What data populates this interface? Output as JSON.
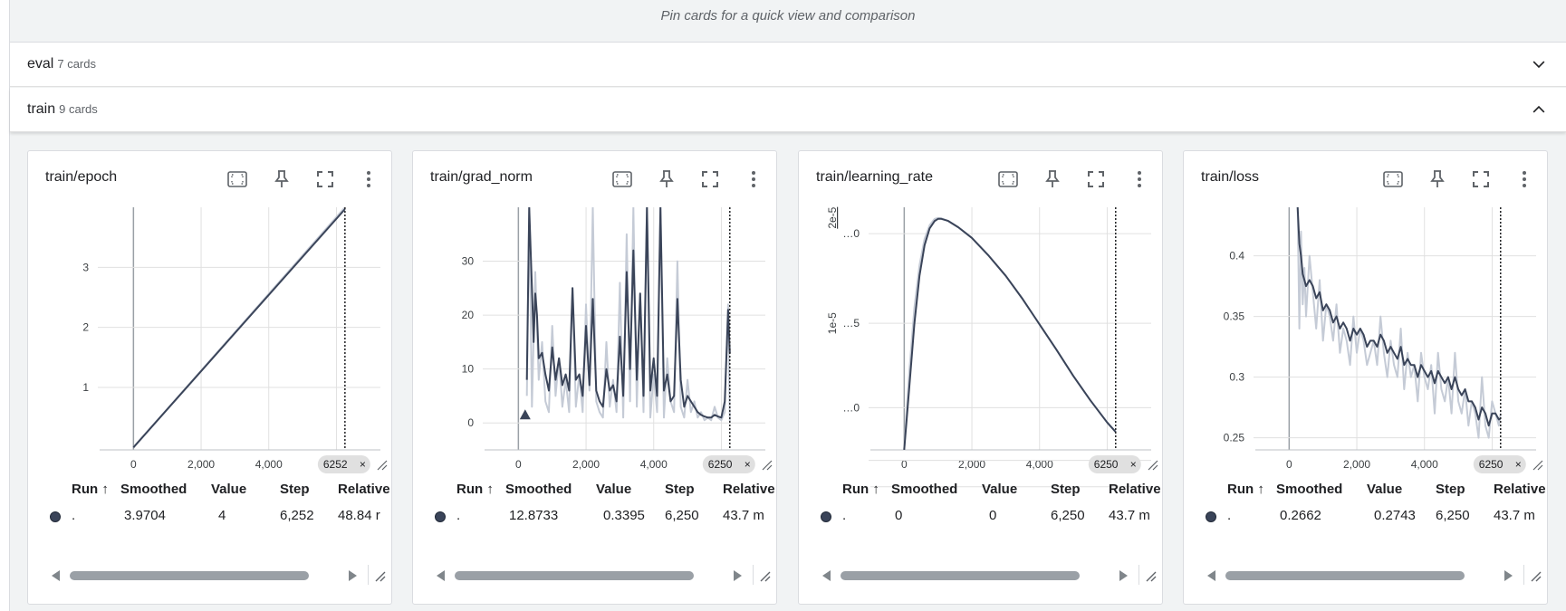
{
  "pinned_hint": "Pin cards for a quick view and comparison",
  "groups": [
    {
      "name": "eval",
      "count": "7 cards",
      "expanded": false
    },
    {
      "name": "train",
      "count": "9 cards",
      "expanded": true
    }
  ],
  "table_headers": {
    "run": "Run ↑",
    "smoothed": "Smoothed",
    "value": "Value",
    "step": "Step",
    "relative": "Relative"
  },
  "colors": {
    "line": "#3a4459",
    "raw": "#c5cbd6",
    "grid": "#e0e0e0",
    "axis": "#9aa0a6"
  },
  "icons": [
    "fit-domain-icon",
    "pin-icon",
    "fullscreen-icon",
    "more-vert-icon",
    "chevron-down-icon",
    "chevron-up-icon",
    "resize-icon"
  ],
  "cards": [
    {
      "title": "train/epoch",
      "row": {
        "run": ".",
        "smoothed": "3.9704",
        "value": "4",
        "step": "6,252",
        "relative": "48.84 r"
      },
      "chart_data": {
        "type": "line",
        "title": "train/epoch",
        "x_ticks": [
          "0",
          "2,000",
          "4,000"
        ],
        "y_ticks": [
          "1",
          "2",
          "3"
        ],
        "xlim": [
          -1000,
          7300
        ],
        "ylim": [
          -0.04,
          4.0
        ],
        "cursor_step": 6252,
        "cursor_label": "6252",
        "series": [
          {
            "name": "raw",
            "x": [
              0,
              6252
            ],
            "y": [
              0,
              4
            ]
          },
          {
            "name": "smoothed",
            "x": [
              0,
              6252
            ],
            "y": [
              0,
              3.97
            ]
          }
        ]
      }
    },
    {
      "title": "train/grad_norm",
      "row": {
        "run": ".",
        "smoothed": "12.8733",
        "value": "0.3395",
        "step": "6,250",
        "relative": "43.7 m"
      },
      "chart_data": {
        "type": "line",
        "title": "train/grad_norm",
        "x_ticks": [
          "0",
          "2,000",
          "4,000"
        ],
        "y_ticks": [
          "0",
          "10",
          "20",
          "30"
        ],
        "xlim": [
          -1000,
          7300
        ],
        "ylim": [
          -5,
          40
        ],
        "cursor_step": 6250,
        "cursor_label": "6250",
        "marker": {
          "x": 200,
          "y": 1.5
        },
        "series": [
          {
            "name": "raw",
            "x": [
              250,
              320,
              400,
              500,
              600,
              700,
              800,
              900,
              1000,
              1100,
              1200,
              1300,
              1400,
              1500,
              1600,
              1700,
              1800,
              1900,
              2000,
              2100,
              2200,
              2300,
              2400,
              2500,
              2600,
              2700,
              2800,
              2900,
              3000,
              3100,
              3200,
              3300,
              3400,
              3500,
              3600,
              3700,
              3800,
              3900,
              4000,
              4100,
              4200,
              4300,
              4400,
              4500,
              4600,
              4700,
              4800,
              4900,
              5000,
              5100,
              5200,
              5300,
              5400,
              5500,
              5600,
              5700,
              5800,
              5900,
              6000,
              6100,
              6200,
              6250
            ],
            "y": [
              5,
              40,
              3,
              28,
              8,
              15,
              4,
              2,
              18,
              5,
              12,
              3,
              8,
              2,
              25,
              3,
              9,
              2,
              22,
              6,
              40,
              4,
              2,
              1,
              15,
              3,
              8,
              2,
              26,
              1,
              35,
              4,
              40,
              3,
              24,
              2,
              40,
              1,
              9,
              2,
              40,
              1,
              12,
              4,
              2,
              30,
              3,
              1,
              8,
              2,
              4,
              1,
              2,
              0.5,
              1,
              0.5,
              3,
              1,
              0.5,
              2,
              22,
              0.3
            ]
          },
          {
            "name": "smoothed",
            "x": [
              250,
              320,
              400,
              450,
              500,
              550,
              600,
              700,
              800,
              900,
              1000,
              1100,
              1200,
              1300,
              1400,
              1500,
              1600,
              1700,
              1800,
              1900,
              2000,
              2100,
              2200,
              2300,
              2400,
              2500,
              2600,
              2700,
              2800,
              2900,
              3000,
              3100,
              3200,
              3300,
              3400,
              3500,
              3600,
              3700,
              3800,
              3900,
              4000,
              4100,
              4200,
              4300,
              4400,
              4500,
              4600,
              4700,
              4800,
              4900,
              5000,
              5100,
              5200,
              5300,
              5400,
              5500,
              5600,
              5700,
              5800,
              5900,
              6000,
              6100,
              6200,
              6250
            ],
            "y": [
              8,
              40,
              25,
              15,
              24,
              20,
              12,
              13,
              9,
              6,
              14,
              8,
              12,
              7,
              9,
              6,
              25,
              8,
              9,
              5,
              18,
              7,
              23,
              6,
              4,
              3,
              10,
              6,
              7,
              4,
              16,
              5,
              28,
              10,
              32,
              8,
              24,
              5,
              40,
              6,
              12,
              5,
              40,
              6,
              9,
              4,
              5,
              23,
              8,
              3,
              5,
              4,
              3,
              2,
              1.5,
              1.2,
              1,
              1,
              1.5,
              1.2,
              1,
              4,
              21,
              12.9
            ]
          }
        ]
      }
    },
    {
      "title": "train/learning_rate",
      "row": {
        "run": ".",
        "smoothed": "0",
        "value": "0",
        "step": "6,250",
        "relative": "43.7 m"
      },
      "chart_data": {
        "type": "line",
        "title": "train/learning_rate",
        "x_ticks": [
          "0",
          "2,000",
          "4,000"
        ],
        "y_ticks": [
          "…0",
          "…5",
          "…0"
        ],
        "y_axis_labels": [
          "2e-5",
          "1e-5"
        ],
        "xlim": [
          -1000,
          7300
        ],
        "ylim": [
          -0.2,
          2.1
        ],
        "cursor_step": 6250,
        "cursor_label": "6250",
        "series": [
          {
            "name": "raw",
            "x": [
              0,
              150,
              300,
              450,
              600,
              750,
              900,
              1000,
              1100,
              1300,
              1600,
              2000,
              2500,
              3000,
              3500,
              4000,
              4500,
              5000,
              5500,
              6000,
              6250
            ],
            "y": [
              -0.2,
              0.55,
              1.15,
              1.55,
              1.8,
              1.93,
              1.99,
              2.0,
              1.995,
              1.97,
              1.91,
              1.81,
              1.64,
              1.45,
              1.23,
              0.99,
              0.75,
              0.5,
              0.27,
              0.06,
              -0.03
            ]
          },
          {
            "name": "smoothed",
            "x": [
              0,
              150,
              300,
              450,
              600,
              750,
              900,
              1000,
              1100,
              1300,
              1600,
              2000,
              2500,
              3000,
              3500,
              4000,
              4500,
              5000,
              5500,
              6000,
              6250
            ],
            "y": [
              -0.2,
              0.4,
              1.0,
              1.45,
              1.74,
              1.9,
              1.97,
              1.99,
              1.99,
              1.97,
              1.91,
              1.81,
              1.64,
              1.45,
              1.23,
              0.99,
              0.75,
              0.5,
              0.27,
              0.06,
              -0.03
            ]
          }
        ]
      }
    },
    {
      "title": "train/loss",
      "row": {
        "run": ".",
        "smoothed": "0.2662",
        "value": "0.2743",
        "step": "6,250",
        "relative": "43.7 m"
      },
      "chart_data": {
        "type": "line",
        "title": "train/loss",
        "x_ticks": [
          "0",
          "2,000",
          "4,000"
        ],
        "y_ticks": [
          "0.25",
          "0.3",
          "0.35",
          "0.4"
        ],
        "xlim": [
          -1000,
          7300
        ],
        "ylim": [
          0.24,
          0.44
        ],
        "cursor_step": 6250,
        "cursor_label": "6250",
        "series": [
          {
            "name": "raw",
            "x": [
              250,
              300,
              350,
              400,
              450,
              500,
              600,
              700,
              800,
              900,
              1000,
              1100,
              1200,
              1300,
              1400,
              1500,
              1600,
              1700,
              1800,
              1900,
              2000,
              2100,
              2200,
              2300,
              2400,
              2500,
              2600,
              2700,
              2800,
              2900,
              3000,
              3100,
              3200,
              3300,
              3400,
              3500,
              3600,
              3700,
              3800,
              3900,
              4000,
              4100,
              4200,
              4300,
              4400,
              4500,
              4600,
              4700,
              4800,
              4900,
              5000,
              5100,
              5200,
              5300,
              5400,
              5500,
              5600,
              5700,
              5800,
              5900,
              6000,
              6100,
              6200,
              6250
            ],
            "y": [
              0.44,
              0.34,
              0.42,
              0.36,
              0.39,
              0.35,
              0.4,
              0.37,
              0.34,
              0.38,
              0.33,
              0.36,
              0.35,
              0.33,
              0.36,
              0.32,
              0.34,
              0.33,
              0.31,
              0.35,
              0.32,
              0.34,
              0.33,
              0.31,
              0.32,
              0.33,
              0.31,
              0.35,
              0.32,
              0.3,
              0.33,
              0.31,
              0.3,
              0.34,
              0.29,
              0.32,
              0.3,
              0.31,
              0.28,
              0.32,
              0.3,
              0.29,
              0.31,
              0.27,
              0.32,
              0.29,
              0.28,
              0.3,
              0.27,
              0.32,
              0.28,
              0.27,
              0.29,
              0.26,
              0.28,
              0.27,
              0.25,
              0.3,
              0.26,
              0.25,
              0.28,
              0.27,
              0.26,
              0.27
            ]
          },
          {
            "name": "smoothed",
            "x": [
              250,
              300,
              350,
              400,
              450,
              500,
              600,
              700,
              800,
              900,
              1000,
              1100,
              1200,
              1300,
              1400,
              1500,
              1600,
              1700,
              1800,
              1900,
              2000,
              2100,
              2200,
              2300,
              2400,
              2500,
              2600,
              2700,
              2800,
              2900,
              3000,
              3100,
              3200,
              3300,
              3400,
              3500,
              3600,
              3700,
              3800,
              3900,
              4000,
              4100,
              4200,
              4300,
              4400,
              4500,
              4600,
              4700,
              4800,
              4900,
              5000,
              5100,
              5200,
              5300,
              5400,
              5500,
              5600,
              5700,
              5800,
              5900,
              6000,
              6100,
              6200,
              6250
            ],
            "y": [
              0.44,
              0.41,
              0.4,
              0.385,
              0.38,
              0.375,
              0.38,
              0.375,
              0.365,
              0.37,
              0.355,
              0.36,
              0.355,
              0.345,
              0.35,
              0.34,
              0.345,
              0.34,
              0.33,
              0.34,
              0.335,
              0.34,
              0.335,
              0.325,
              0.33,
              0.33,
              0.325,
              0.335,
              0.33,
              0.32,
              0.325,
              0.32,
              0.315,
              0.325,
              0.31,
              0.315,
              0.31,
              0.31,
              0.3,
              0.31,
              0.305,
              0.3,
              0.305,
              0.295,
              0.305,
              0.3,
              0.295,
              0.3,
              0.29,
              0.3,
              0.29,
              0.285,
              0.29,
              0.28,
              0.28,
              0.275,
              0.265,
              0.275,
              0.27,
              0.26,
              0.27,
              0.27,
              0.265,
              0.266
            ]
          }
        ]
      }
    }
  ]
}
